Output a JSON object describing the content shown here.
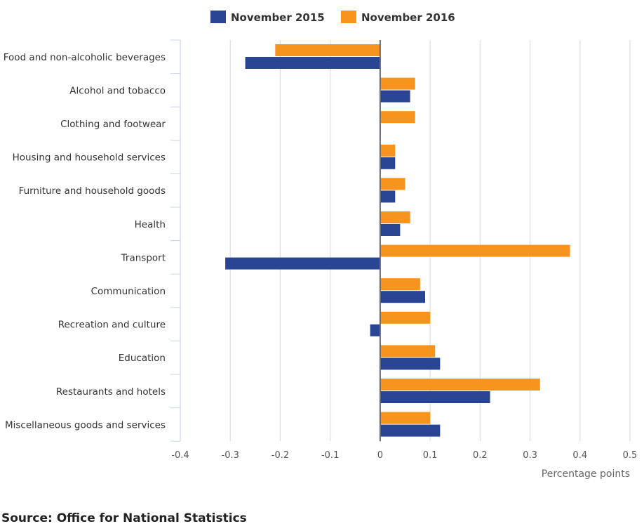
{
  "chart_data": {
    "type": "bar",
    "orientation": "horizontal",
    "categories": [
      "Food and non-alcoholic beverages",
      "Alcohol and tobacco",
      "Clothing and footwear",
      "Housing and household services",
      "Furniture and household goods",
      "Health",
      "Transport",
      "Communication",
      "Recreation and culture",
      "Education",
      "Restaurants and hotels",
      "Miscellaneous goods and services"
    ],
    "series": [
      {
        "name": "November 2015",
        "color": "#2a4494",
        "values": [
          -0.27,
          0.06,
          0.0,
          0.03,
          0.03,
          0.04,
          -0.31,
          0.09,
          -0.02,
          0.12,
          0.22,
          0.12
        ]
      },
      {
        "name": "November 2016",
        "color": "#f7941d",
        "values": [
          -0.21,
          0.07,
          0.07,
          0.03,
          0.05,
          0.06,
          0.38,
          0.08,
          0.1,
          0.11,
          0.32,
          0.1
        ]
      }
    ],
    "xlim": [
      -0.4,
      0.5
    ],
    "xticks": [
      "-0.4",
      "-0.3",
      "-0.2",
      "-0.1",
      "0",
      "0.1",
      "0.2",
      "0.3",
      "0.4",
      "0.5"
    ],
    "xlabel": "Percentage points",
    "legend_position": "top-center",
    "grid": true
  },
  "source": "Source: Office for National Statistics"
}
